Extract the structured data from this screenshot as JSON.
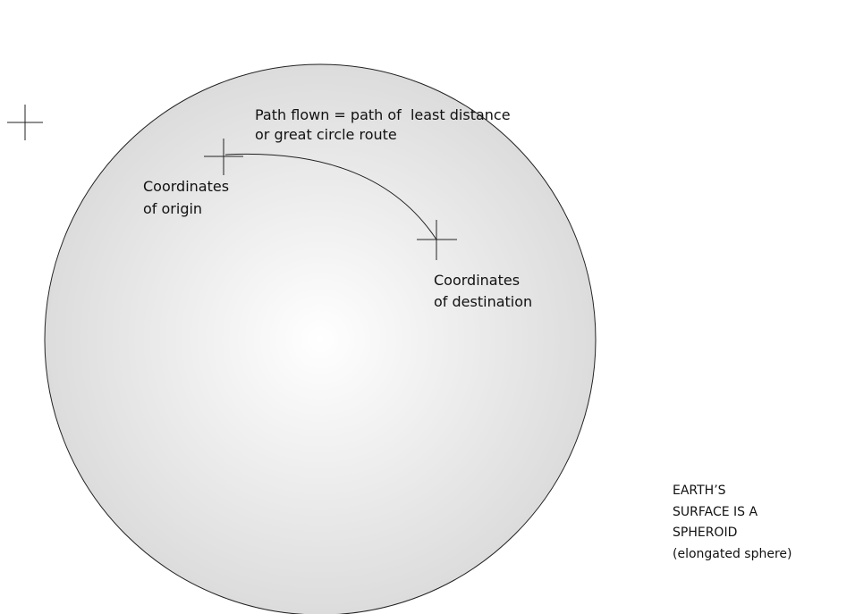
{
  "path_label": {
    "lines": [
      "Path flown = path of  least distance",
      "or great circle route"
    ]
  },
  "origin_label": {
    "lines": [
      "Coordinates",
      "of origin"
    ]
  },
  "destination_label": {
    "lines": [
      "Coordinates",
      "of destination"
    ]
  },
  "surface_note": {
    "lines": [
      "EARTH’S",
      "SURFACE IS A",
      "SPHEROID",
      "(elongated sphere)"
    ]
  }
}
